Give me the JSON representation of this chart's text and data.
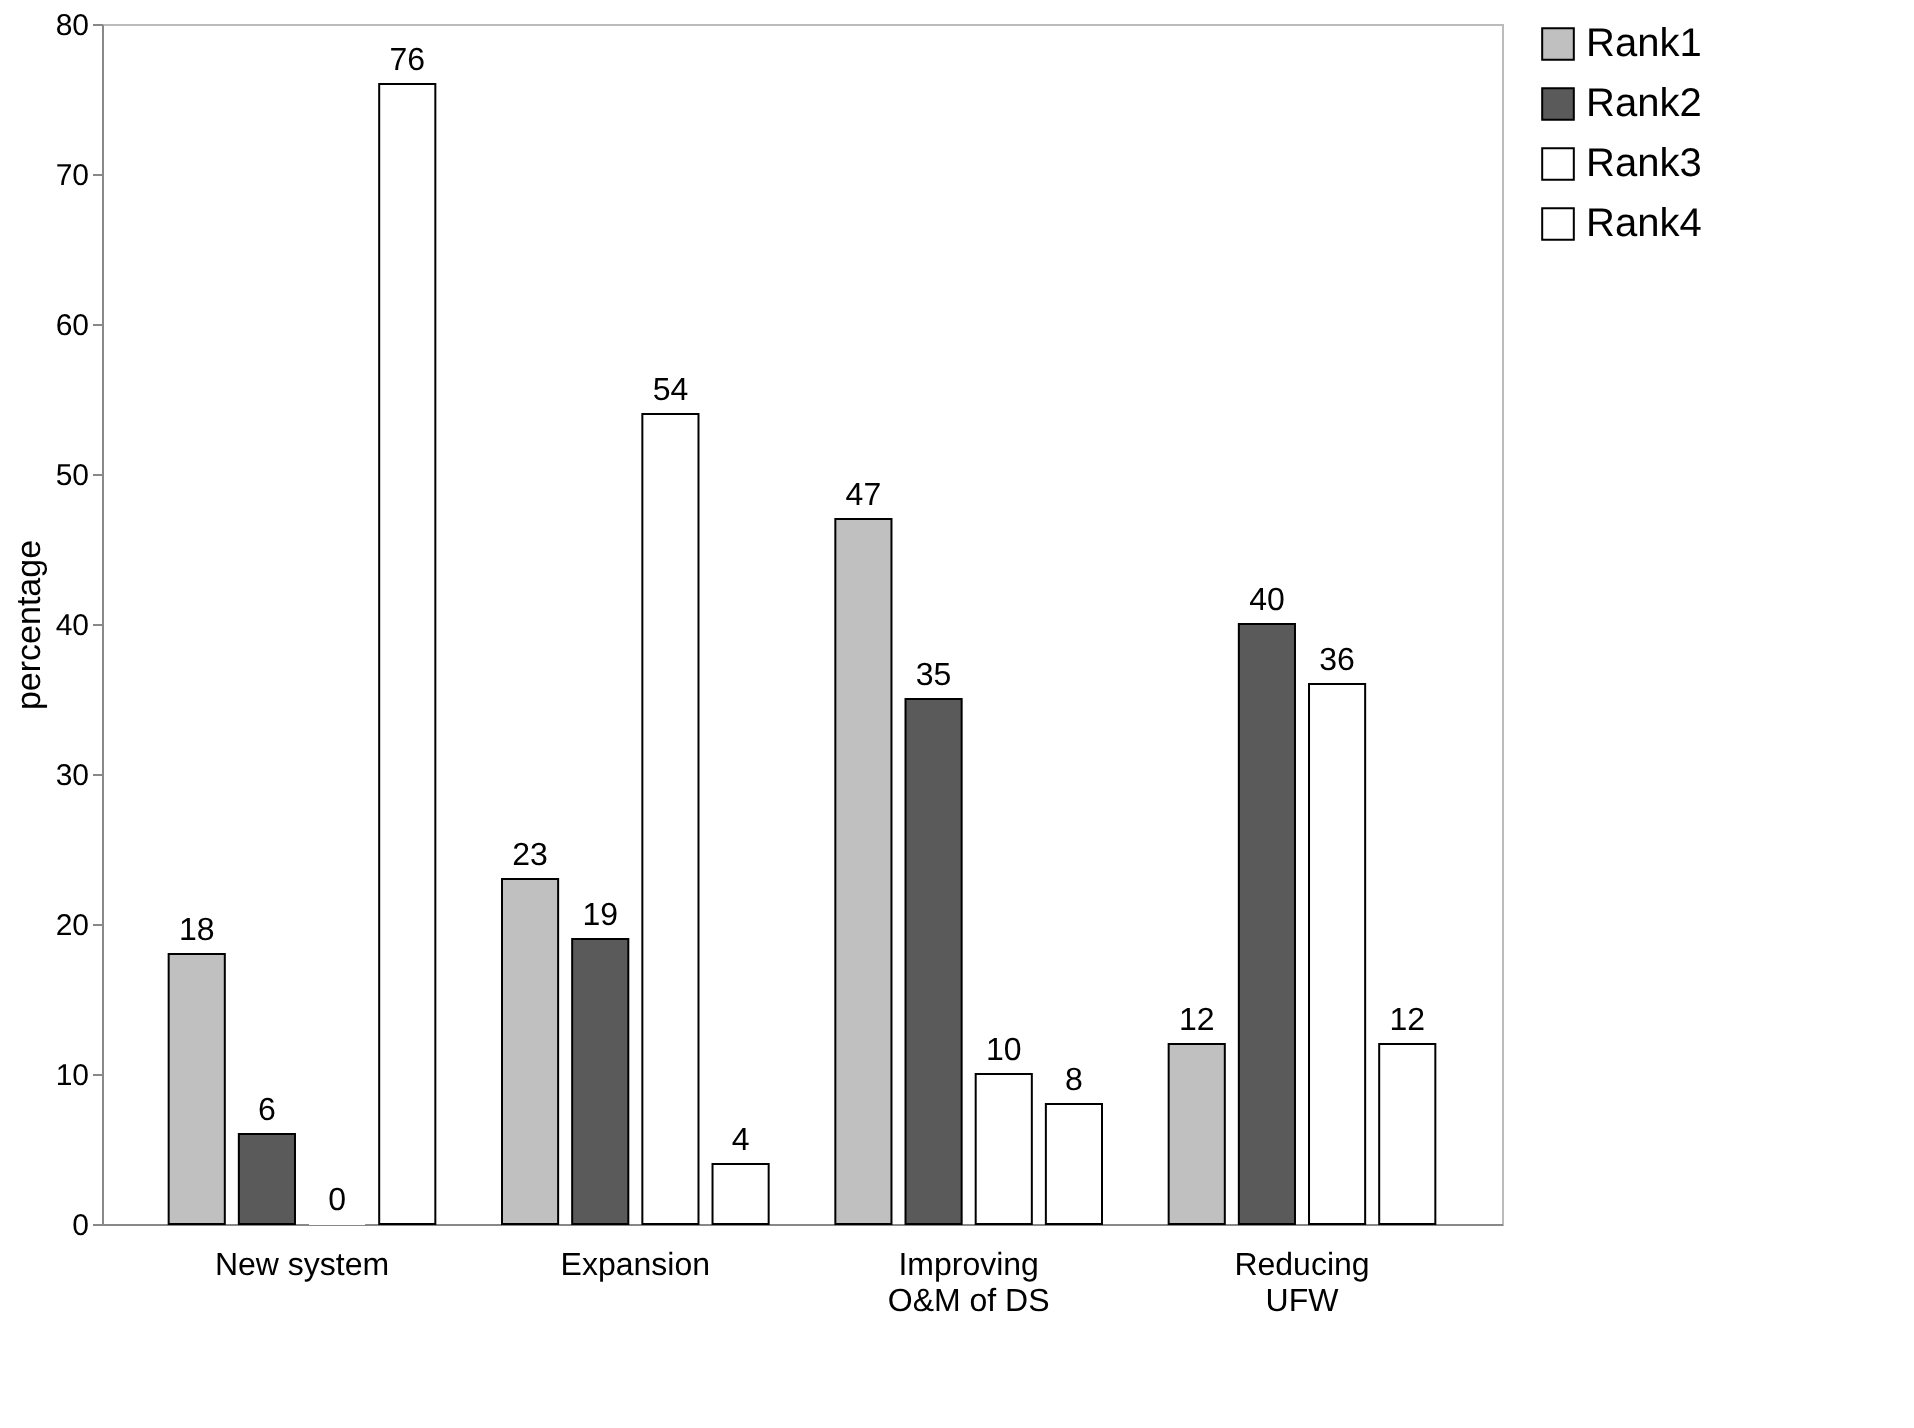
{
  "chart_data": {
    "type": "bar",
    "categories": [
      "New system",
      "Expansion",
      "Improving\nO&M of DS",
      "Reducing\nUFW"
    ],
    "series": [
      {
        "name": "Rank1",
        "color": "#c0c0c0",
        "values": [
          18,
          23,
          47,
          12
        ]
      },
      {
        "name": "Rank2",
        "color": "#5a5a5a",
        "values": [
          6,
          19,
          35,
          40
        ]
      },
      {
        "name": "Rank3",
        "color": "#ffffff",
        "values": [
          0,
          54,
          10,
          36
        ]
      },
      {
        "name": "Rank4",
        "color": "#ffffff",
        "values": [
          76,
          4,
          8,
          12
        ]
      }
    ],
    "ylabel": "percentage",
    "ylim": [
      0,
      80
    ],
    "yticks": [
      0,
      10,
      20,
      30,
      40,
      50,
      60,
      70,
      80
    ],
    "grid": false,
    "legend": "right",
    "data_labels": true
  }
}
